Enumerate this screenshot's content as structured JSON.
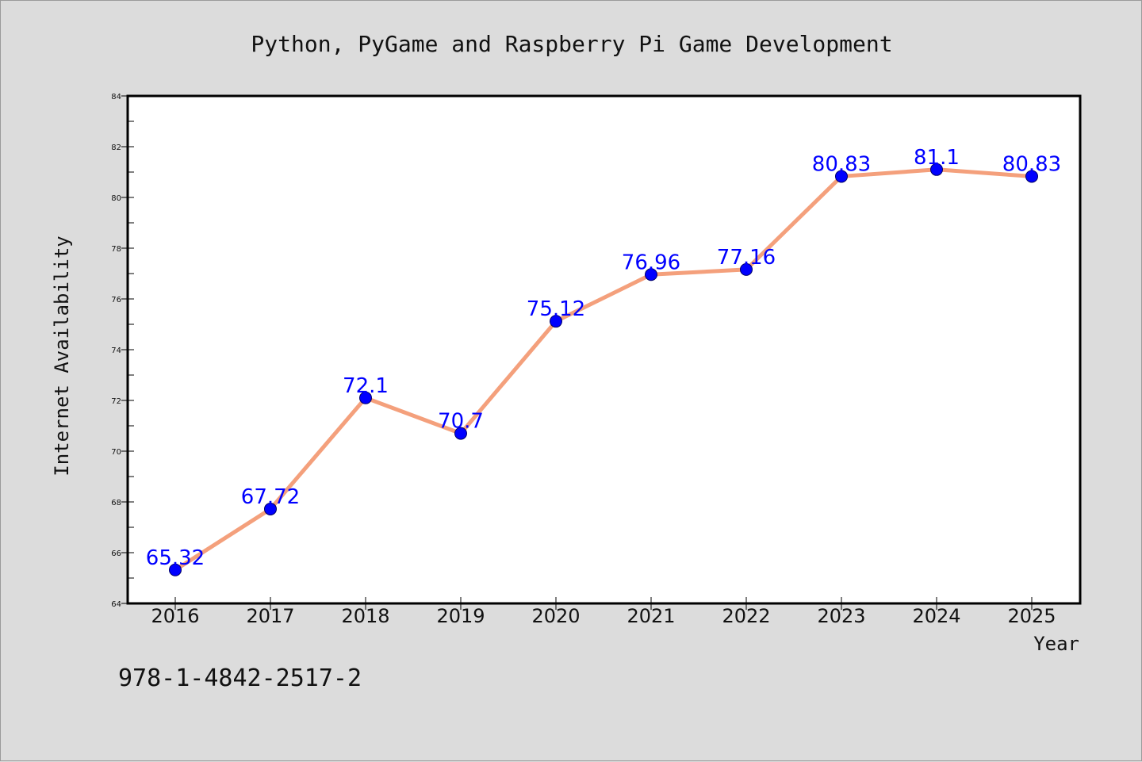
{
  "chart_data": {
    "type": "line",
    "title": "Python, PyGame and Raspberry Pi Game Development",
    "xlabel": "Year",
    "ylabel": "Internet Availability",
    "categories": [
      "2016",
      "2017",
      "2018",
      "2019",
      "2020",
      "2021",
      "2022",
      "2023",
      "2024",
      "2025"
    ],
    "series": [
      {
        "values": [
          65.32,
          67.72,
          72.1,
          70.7,
          75.12,
          76.96,
          77.16,
          80.83,
          81.1,
          80.83
        ],
        "line_color": "#f4a07c",
        "marker_color": "#0000ff"
      }
    ],
    "data_labels": [
      "65.32",
      "67.72",
      "72.1",
      "70.7",
      "75.12",
      "76.96",
      "77.16",
      "80.83",
      "81.1",
      "80.83"
    ],
    "ylim": [
      64,
      84
    ],
    "yticks": [
      "64",
      "66",
      "68",
      "70",
      "72",
      "74",
      "76",
      "78",
      "80",
      "82",
      "84"
    ],
    "grid": false,
    "legend": "none"
  },
  "footer": {
    "isbn": "978-1-4842-2517-2"
  },
  "colors": {
    "background": "#dcdcdc",
    "plot_background": "#ffffff",
    "line": "#f4a07c",
    "marker": "#0000ff",
    "data_label": "#0000ff"
  }
}
